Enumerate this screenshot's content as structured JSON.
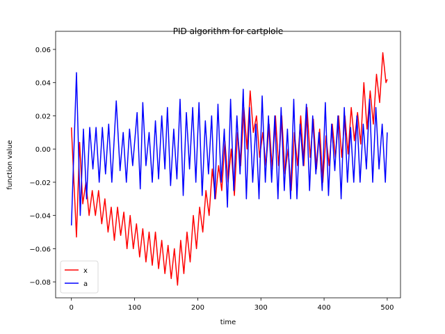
{
  "chart_data": {
    "type": "line",
    "title": "PID algorithm for cartplole",
    "xlabel": "time",
    "ylabel": "function value",
    "xlim": [
      -25,
      521
    ],
    "ylim": [
      -0.0896,
      0.0709
    ],
    "xticks": [
      0,
      100,
      200,
      300,
      400,
      500
    ],
    "yticks": [
      {
        "value": -0.08,
        "label": "−0.08"
      },
      {
        "value": -0.06,
        "label": "−0.06"
      },
      {
        "value": -0.04,
        "label": "−0.04"
      },
      {
        "value": -0.02,
        "label": "−0.02"
      },
      {
        "value": 0,
        "label": "0.00"
      },
      {
        "value": 0.02,
        "label": "0.02"
      },
      {
        "value": 0.04,
        "label": "0.04"
      },
      {
        "value": 0.06,
        "label": "0.06"
      }
    ],
    "legend": "lower left",
    "series": [
      {
        "name": "x",
        "color": "#ff0000",
        "x": [
          0,
          8,
          13,
          18,
          23,
          28,
          33,
          38,
          43,
          48,
          53,
          58,
          63,
          68,
          73,
          78,
          83,
          88,
          93,
          98,
          103,
          108,
          113,
          118,
          123,
          128,
          133,
          138,
          143,
          148,
          153,
          158,
          163,
          168,
          173,
          178,
          183,
          188,
          193,
          198,
          203,
          208,
          213,
          218,
          223,
          228,
          233,
          238,
          243,
          248,
          253,
          258,
          263,
          268,
          273,
          278,
          283,
          288,
          293,
          298,
          303,
          308,
          313,
          318,
          323,
          328,
          333,
          338,
          343,
          348,
          353,
          358,
          363,
          368,
          373,
          378,
          383,
          388,
          393,
          398,
          403,
          408,
          413,
          418,
          423,
          428,
          433,
          438,
          443,
          448,
          453,
          458,
          463,
          468,
          473,
          478,
          483,
          488,
          493,
          498,
          500
        ],
        "values": [
          0.013,
          -0.053,
          0.004,
          -0.033,
          -0.02,
          -0.04,
          -0.025,
          -0.04,
          -0.025,
          -0.045,
          -0.03,
          -0.05,
          -0.035,
          -0.055,
          -0.035,
          -0.052,
          -0.038,
          -0.06,
          -0.04,
          -0.06,
          -0.045,
          -0.065,
          -0.048,
          -0.068,
          -0.05,
          -0.07,
          -0.05,
          -0.072,
          -0.055,
          -0.075,
          -0.058,
          -0.078,
          -0.06,
          -0.082,
          -0.055,
          -0.075,
          -0.05,
          -0.068,
          -0.04,
          -0.06,
          -0.035,
          -0.05,
          -0.025,
          -0.04,
          -0.012,
          -0.03,
          -0.01,
          -0.025,
          0.005,
          -0.02,
          0.0,
          -0.028,
          0.01,
          -0.01,
          0.025,
          0.0,
          0.035,
          0.01,
          0.02,
          -0.005,
          0.01,
          -0.01,
          0.015,
          -0.012,
          0.02,
          -0.01,
          0.02,
          -0.015,
          0.0,
          -0.025,
          0.01,
          -0.01,
          0.02,
          -0.01,
          0.025,
          -0.005,
          0.018,
          -0.012,
          0.012,
          -0.02,
          0.008,
          -0.01,
          0.015,
          -0.005,
          0.02,
          -0.005,
          0.02,
          -0.003,
          0.025,
          0.005,
          0.022,
          0.003,
          0.04,
          0.012,
          0.035,
          0.015,
          0.045,
          0.028,
          0.058,
          0.04,
          0.042
        ]
      },
      {
        "name": "a",
        "color": "#0000ff",
        "x": [
          0,
          8,
          14,
          19,
          24,
          29,
          34,
          39,
          44,
          49,
          54,
          59,
          64,
          71,
          77,
          82,
          87,
          92,
          97,
          104,
          109,
          113,
          118,
          123,
          128,
          133,
          138,
          143,
          148,
          152,
          157,
          162,
          167,
          172,
          177,
          182,
          187,
          192,
          197,
          202,
          207,
          212,
          217,
          222,
          227,
          232,
          237,
          242,
          247,
          252,
          257,
          262,
          267,
          272,
          277,
          282,
          287,
          292,
          297,
          302,
          307,
          312,
          317,
          322,
          327,
          332,
          337,
          342,
          347,
          352,
          357,
          362,
          367,
          372,
          377,
          382,
          387,
          392,
          397,
          402,
          407,
          412,
          417,
          422,
          427,
          432,
          437,
          442,
          447,
          452,
          457,
          462,
          467,
          472,
          477,
          482,
          487,
          492,
          497,
          500
        ],
        "values": [
          -0.046,
          0.046,
          -0.04,
          0.012,
          -0.03,
          0.013,
          -0.012,
          0.013,
          -0.02,
          0.013,
          -0.015,
          0.015,
          -0.02,
          0.029,
          -0.013,
          0.01,
          -0.02,
          0.012,
          -0.01,
          0.022,
          -0.024,
          0.028,
          -0.01,
          0.01,
          -0.02,
          0.017,
          -0.018,
          0.02,
          -0.012,
          0.025,
          -0.022,
          0.012,
          -0.018,
          0.03,
          -0.028,
          0.022,
          -0.012,
          0.025,
          -0.02,
          0.028,
          -0.028,
          0.017,
          -0.015,
          0.02,
          -0.03,
          0.027,
          -0.02,
          0.012,
          -0.035,
          0.03,
          -0.025,
          0.02,
          -0.015,
          0.036,
          -0.03,
          0.025,
          -0.02,
          0.015,
          -0.03,
          0.032,
          -0.02,
          0.02,
          -0.02,
          0.02,
          -0.03,
          0.025,
          -0.025,
          0.012,
          -0.03,
          0.03,
          -0.03,
          0.015,
          -0.01,
          0.027,
          -0.025,
          0.02,
          -0.015,
          0.01,
          -0.025,
          0.028,
          -0.028,
          0.015,
          -0.013,
          0.02,
          -0.03,
          0.025,
          -0.02,
          0.013,
          -0.02,
          0.02,
          -0.02,
          0.015,
          -0.012,
          0.03,
          -0.02,
          0.025,
          -0.012,
          0.015,
          -0.02,
          0.01
        ]
      }
    ]
  }
}
